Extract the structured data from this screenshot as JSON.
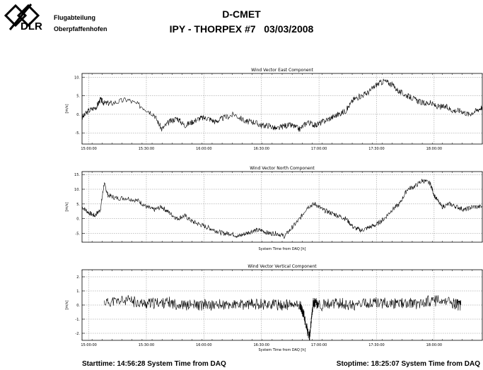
{
  "header": {
    "logo_text": "DLR",
    "department_line1": "Flugabteilung",
    "department_line2": "Oberpfaffenhofen",
    "title": "D-CMET",
    "subtitle": "IPY - THORPEX #7   03/03/2008"
  },
  "footer": {
    "start": "Starttime: 14:56:28 System Time from DAQ",
    "stop": "Stoptime: 18:25:07 System Time from DAQ"
  },
  "colors": {
    "line": "#000000",
    "grid": "#888888",
    "background": "#ffffff"
  },
  "chart_data": [
    {
      "type": "line",
      "title": "Wind Vector East Component",
      "xlabel": "",
      "ylabel": "[m/s]",
      "x_ticks": [
        "15:00:00",
        "15:30:00",
        "16:00:00",
        "16:30:00",
        "17:00:00",
        "17:30:00",
        "18:00:00"
      ],
      "xlim": [
        "14:56:28",
        "18:25:07"
      ],
      "ylim": [
        -8,
        11
      ],
      "y_ticks": [
        -5,
        0,
        5,
        10
      ],
      "grid": true,
      "series": [
        {
          "x": [
            "14:56:28",
            "15:00",
            "15:04",
            "15:06",
            "15:08",
            "15:12",
            "15:20",
            "15:28",
            "15:34",
            "15:38",
            "15:42",
            "15:46",
            "15:50",
            "15:54",
            "15:58",
            "16:02",
            "16:06",
            "16:10",
            "16:16",
            "16:22",
            "16:26",
            "16:30",
            "16:34",
            "16:38",
            "16:42",
            "16:46",
            "16:50",
            "16:54",
            "16:58",
            "17:02",
            "17:06",
            "17:10",
            "17:14",
            "17:18",
            "17:22",
            "17:26",
            "17:30",
            "17:34",
            "17:38",
            "17:42",
            "17:46",
            "17:50",
            "17:54",
            "17:58",
            "18:02",
            "18:06",
            "18:10",
            "18:14",
            "18:18",
            "18:22",
            "18:25:07"
          ],
          "values": [
            -1,
            1,
            2,
            4,
            3,
            3,
            4,
            2,
            0,
            -4,
            -2,
            -1,
            -3,
            -2,
            -1,
            -1,
            -2,
            -1,
            0,
            -2,
            -2,
            -3,
            -3,
            -4,
            -3,
            -3,
            -4,
            -2,
            -3,
            -2,
            -1,
            0,
            1,
            4,
            5,
            6,
            8,
            9,
            8,
            6,
            5,
            4,
            3,
            3,
            2,
            2,
            1,
            1,
            0,
            1,
            2
          ]
        }
      ]
    },
    {
      "type": "line",
      "title": "Wind Vector North Component",
      "xlabel": "System Time from DAQ [h]",
      "ylabel": "[m/s]",
      "x_ticks": [],
      "xlim": [
        "14:56:28",
        "18:25:07"
      ],
      "ylim": [
        -8,
        16
      ],
      "y_ticks": [
        -5,
        0,
        5,
        10,
        15
      ],
      "grid": true,
      "series": [
        {
          "x": [
            "14:56:28",
            "15:00",
            "15:03",
            "15:06",
            "15:08",
            "15:10",
            "15:14",
            "15:20",
            "15:26",
            "15:30",
            "15:34",
            "15:38",
            "15:42",
            "15:46",
            "15:50",
            "15:54",
            "15:58",
            "16:02",
            "16:06",
            "16:10",
            "16:14",
            "16:18",
            "16:22",
            "16:26",
            "16:30",
            "16:34",
            "16:38",
            "16:42",
            "16:46",
            "16:50",
            "16:54",
            "16:58",
            "17:02",
            "17:06",
            "17:10",
            "17:14",
            "17:18",
            "17:22",
            "17:26",
            "17:30",
            "17:34",
            "17:38",
            "17:42",
            "17:46",
            "17:50",
            "17:54",
            "17:58",
            "18:00",
            "18:04",
            "18:08",
            "18:12",
            "18:16",
            "18:20",
            "18:25:07"
          ],
          "values": [
            4,
            2,
            1,
            3,
            12,
            8,
            7,
            7,
            6,
            4,
            3,
            4,
            2,
            0,
            1,
            -1,
            -2,
            -3,
            -4,
            -5,
            -5,
            -6,
            -5,
            -4,
            -4,
            -5,
            -5,
            -6,
            -3,
            0,
            4,
            5,
            3,
            2,
            1,
            0,
            -3,
            -4,
            -3,
            -2,
            0,
            3,
            5,
            10,
            11,
            13,
            12,
            8,
            4,
            5,
            4,
            3,
            4,
            4
          ]
        }
      ]
    },
    {
      "type": "line",
      "title": "Wind Vector Vertical Component",
      "xlabel": "System Time from DAQ [h]",
      "ylabel": "[m/s]",
      "x_ticks": [
        "15:00:00",
        "15:30:00",
        "16:00:00",
        "16:30:00",
        "17:00:00",
        "17:30:00",
        "18:00:00"
      ],
      "xlim": [
        "14:56:28",
        "18:25:07"
      ],
      "ylim": [
        -2.5,
        2.5
      ],
      "y_ticks": [
        -2,
        -1,
        0,
        1,
        2
      ],
      "grid": true,
      "series": [
        {
          "x": [
            "15:08",
            "15:20",
            "15:30",
            "15:40",
            "15:50",
            "16:00",
            "16:10",
            "16:20",
            "16:30",
            "16:40",
            "16:50",
            "16:52",
            "16:55",
            "16:57",
            "17:00",
            "17:10",
            "17:20",
            "17:30",
            "17:40",
            "17:50",
            "18:00",
            "18:10",
            "18:14"
          ],
          "values": [
            0.2,
            0.3,
            0.1,
            0.2,
            0,
            0,
            0,
            0,
            0.1,
            0,
            0,
            -0.7,
            -2.4,
            0.2,
            0,
            0.1,
            0,
            0.2,
            0.1,
            0.1,
            0.3,
            0.1,
            0
          ]
        }
      ]
    }
  ]
}
